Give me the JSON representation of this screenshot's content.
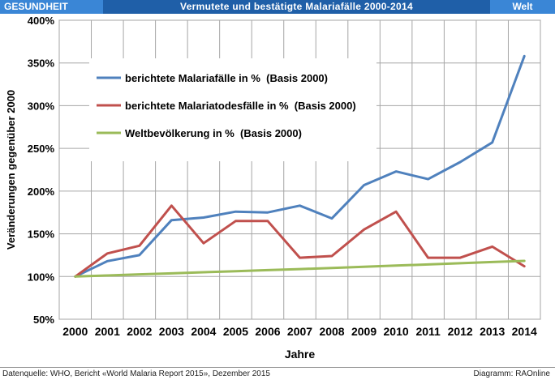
{
  "header": {
    "category": "GESUNDHEIT",
    "title": "Vermutete und bestätigte Malariafälle 2000-2014",
    "region": "Welt"
  },
  "footer": {
    "source": "Datenquelle: WHO, Bericht «World Malaria Report 2015», Dezember 2015",
    "credit": "Diagramm: RAOnline"
  },
  "colors": {
    "header_bg": "#1f5fa8",
    "header_tab": "#3a86d6",
    "series_cases": "#4f81bd",
    "series_deaths": "#c0504d",
    "series_population": "#9bbb59"
  },
  "chart_data": {
    "type": "line",
    "title": "",
    "xlabel": "Jahre",
    "ylabel": "Veränderungen gegenüber 2000",
    "x": [
      2000,
      2001,
      2002,
      2003,
      2004,
      2005,
      2006,
      2007,
      2008,
      2009,
      2010,
      2011,
      2012,
      2013,
      2014
    ],
    "x_tick_labels": [
      "2000",
      "2001",
      "2002",
      "2003",
      "2004",
      "2005",
      "2006",
      "2007",
      "2008",
      "2009",
      "2010",
      "2011",
      "2012",
      "2013",
      "2014"
    ],
    "y_tick_values": [
      50,
      100,
      150,
      200,
      250,
      300,
      350,
      400
    ],
    "y_tick_labels": [
      "50%",
      "100%",
      "150%",
      "200%",
      "250%",
      "300%",
      "350%",
      "400%"
    ],
    "ylim": [
      50,
      400
    ],
    "grid": true,
    "legend_position": "top-left inside",
    "series": [
      {
        "name": "berichtete Malariafälle in %  (Basis 2000)",
        "color": "#4f81bd",
        "values": [
          100,
          118,
          125,
          166,
          169,
          176,
          175,
          183,
          168,
          207,
          223,
          214,
          234,
          257,
          358
        ]
      },
      {
        "name": "berichtete Malariatodesfälle in %  (Basis 2000)",
        "color": "#c0504d",
        "values": [
          100,
          127,
          136,
          183,
          139,
          165,
          165,
          122,
          124,
          155,
          176,
          122,
          122,
          135,
          112
        ]
      },
      {
        "name": "Weltbevölkerung in %  (Basis 2000)",
        "color": "#9bbb59",
        "values": [
          100,
          101.2,
          102.5,
          103.7,
          105,
          106.2,
          107.5,
          108.7,
          110,
          111.4,
          112.8,
          114.1,
          115.5,
          117,
          118.3
        ]
      }
    ]
  }
}
